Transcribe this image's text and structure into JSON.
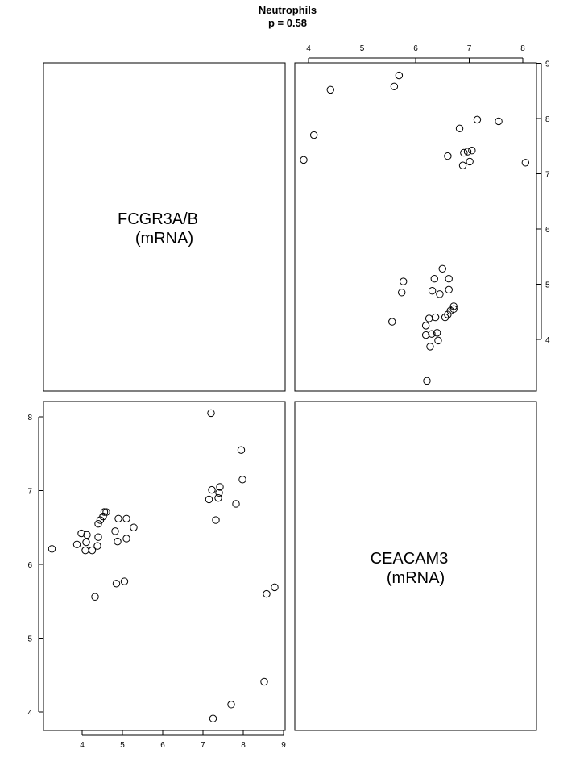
{
  "chart_data": {
    "type": "scatter",
    "title": "Neutrophils",
    "subtitle": "p = 0.58",
    "variables": [
      {
        "label_line1": "FCGR3A/B",
        "label_line2": "(mRNA)"
      },
      {
        "label_line1": "CEACAM3",
        "label_line2": "(mRNA)"
      }
    ],
    "top_axis_ticks": [
      4,
      5,
      6,
      7,
      8
    ],
    "right_axis_ticks": [
      4,
      5,
      6,
      7,
      8,
      9
    ],
    "left_axis_ticks": [
      4,
      5,
      6,
      7,
      8
    ],
    "bottom_axis_ticks": [
      4,
      5,
      6,
      7,
      8,
      9
    ],
    "xlim_fcgr3": [
      3.05,
      9.05
    ],
    "ylim_ceacam3": [
      3.8,
      8.25
    ],
    "grid": false,
    "points": [
      {
        "fcgr3": 3.25,
        "ceacam3": 6.21
      },
      {
        "fcgr3": 3.87,
        "ceacam3": 6.27
      },
      {
        "fcgr3": 3.98,
        "ceacam3": 6.42
      },
      {
        "fcgr3": 4.08,
        "ceacam3": 6.19
      },
      {
        "fcgr3": 4.1,
        "ceacam3": 6.3
      },
      {
        "fcgr3": 4.12,
        "ceacam3": 6.4
      },
      {
        "fcgr3": 4.25,
        "ceacam3": 6.19
      },
      {
        "fcgr3": 4.32,
        "ceacam3": 5.56
      },
      {
        "fcgr3": 4.38,
        "ceacam3": 6.25
      },
      {
        "fcgr3": 4.4,
        "ceacam3": 6.37
      },
      {
        "fcgr3": 4.4,
        "ceacam3": 6.55
      },
      {
        "fcgr3": 4.45,
        "ceacam3": 6.6
      },
      {
        "fcgr3": 4.52,
        "ceacam3": 6.65
      },
      {
        "fcgr3": 4.55,
        "ceacam3": 6.71
      },
      {
        "fcgr3": 4.6,
        "ceacam3": 6.71
      },
      {
        "fcgr3": 4.82,
        "ceacam3": 6.45
      },
      {
        "fcgr3": 4.85,
        "ceacam3": 5.74
      },
      {
        "fcgr3": 4.88,
        "ceacam3": 6.31
      },
      {
        "fcgr3": 4.9,
        "ceacam3": 6.62
      },
      {
        "fcgr3": 5.05,
        "ceacam3": 5.77
      },
      {
        "fcgr3": 5.1,
        "ceacam3": 6.62
      },
      {
        "fcgr3": 5.1,
        "ceacam3": 6.35
      },
      {
        "fcgr3": 5.28,
        "ceacam3": 6.5
      },
      {
        "fcgr3": 7.15,
        "ceacam3": 6.88
      },
      {
        "fcgr3": 7.2,
        "ceacam3": 8.05
      },
      {
        "fcgr3": 7.22,
        "ceacam3": 7.01
      },
      {
        "fcgr3": 7.25,
        "ceacam3": 3.91
      },
      {
        "fcgr3": 7.32,
        "ceacam3": 6.6
      },
      {
        "fcgr3": 7.38,
        "ceacam3": 6.9
      },
      {
        "fcgr3": 7.4,
        "ceacam3": 6.97
      },
      {
        "fcgr3": 7.42,
        "ceacam3": 7.05
      },
      {
        "fcgr3": 7.7,
        "ceacam3": 4.1
      },
      {
        "fcgr3": 7.82,
        "ceacam3": 6.82
      },
      {
        "fcgr3": 7.95,
        "ceacam3": 7.55
      },
      {
        "fcgr3": 7.98,
        "ceacam3": 7.15
      },
      {
        "fcgr3": 8.52,
        "ceacam3": 4.41
      },
      {
        "fcgr3": 8.58,
        "ceacam3": 5.6
      },
      {
        "fcgr3": 8.78,
        "ceacam3": 5.69
      }
    ]
  }
}
